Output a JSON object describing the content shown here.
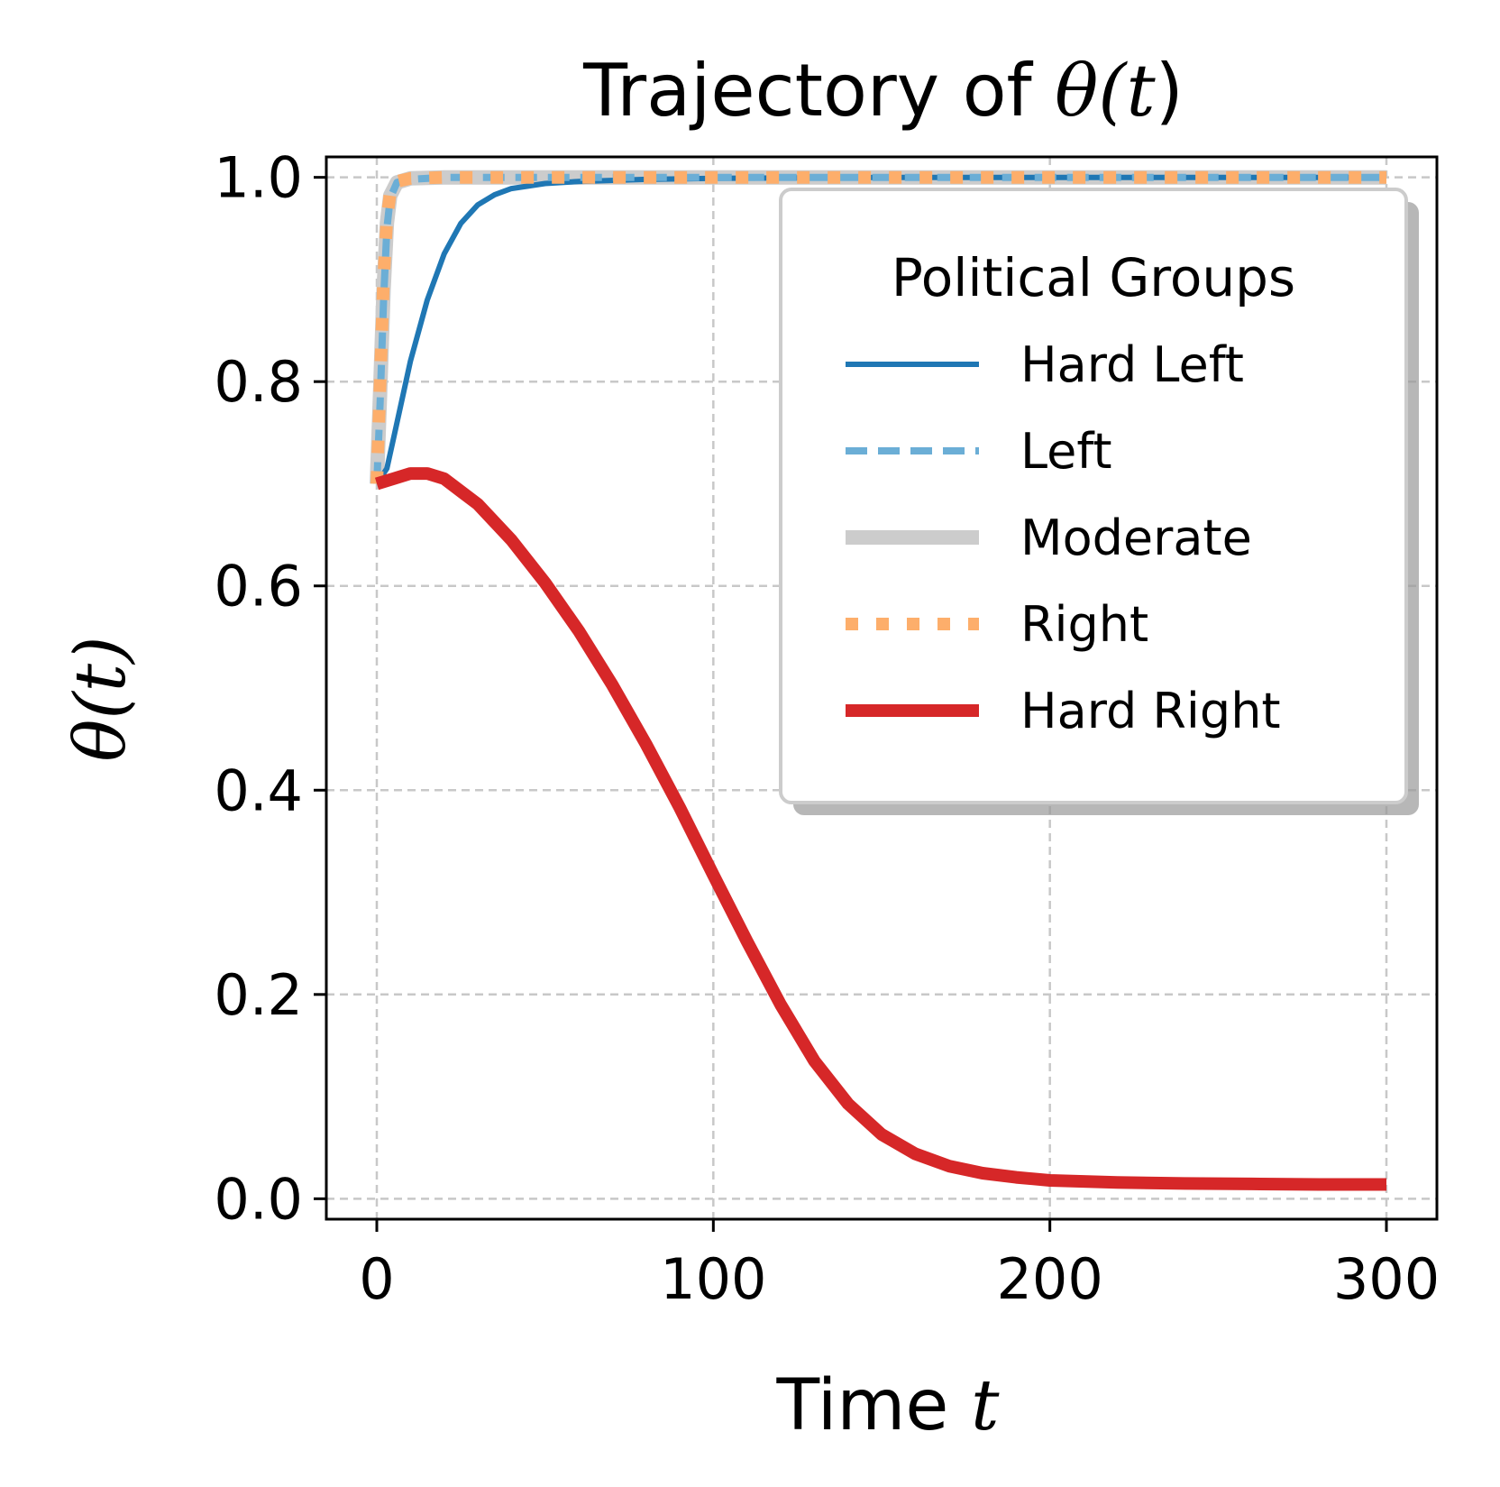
{
  "chart_data": {
    "type": "line",
    "title": "Trajectory of θ(t)",
    "title_parts": [
      "Trajectory of ",
      "θ(",
      "t",
      ")"
    ],
    "xlabel": "Time t",
    "xlabel_parts": [
      "Time ",
      "t"
    ],
    "ylabel": "θ(t)",
    "xlim": [
      -15,
      315
    ],
    "ylim": [
      -0.02,
      1.02
    ],
    "xticks": [
      0,
      100,
      200,
      300
    ],
    "xtick_labels": [
      "0",
      "100",
      "200",
      "300"
    ],
    "yticks": [
      0.0,
      0.2,
      0.4,
      0.6,
      0.8,
      1.0
    ],
    "ytick_labels": [
      "0.0",
      "0.2",
      "0.4",
      "0.6",
      "0.8",
      "1.0"
    ],
    "grid": true,
    "legend": {
      "title": "Political Groups",
      "placement": "upper-right"
    },
    "series": [
      {
        "name": "Hard Left",
        "color": "#1f77b4",
        "style": "solid",
        "x": [
          0,
          3,
          5,
          10,
          15,
          20,
          25,
          30,
          35,
          40,
          50,
          60,
          80,
          100,
          150,
          200,
          250,
          300
        ],
        "y": [
          0.7,
          0.715,
          0.745,
          0.82,
          0.88,
          0.925,
          0.955,
          0.973,
          0.983,
          0.989,
          0.994,
          0.996,
          0.998,
          0.999,
          1.0,
          1.0,
          1.0,
          1.0
        ]
      },
      {
        "name": "Left",
        "color": "#6baed6",
        "style": "dashed",
        "x": [
          0,
          1,
          2,
          3,
          4,
          6,
          10,
          20,
          50,
          100,
          150,
          200,
          250,
          300
        ],
        "y": [
          0.7,
          0.78,
          0.88,
          0.95,
          0.98,
          0.995,
          0.998,
          1.0,
          1.0,
          1.0,
          1.0,
          1.0,
          1.0,
          1.0
        ]
      },
      {
        "name": "Moderate",
        "color": "#cccccc",
        "style": "solid-wide",
        "x": [
          0,
          1,
          2,
          3,
          4,
          6,
          10,
          20,
          50,
          100,
          150,
          200,
          250,
          300
        ],
        "y": [
          0.7,
          0.79,
          0.89,
          0.955,
          0.982,
          0.995,
          0.999,
          1.0,
          1.0,
          1.0,
          1.0,
          1.0,
          1.0,
          1.0
        ]
      },
      {
        "name": "Right",
        "color": "#fdae6b",
        "style": "dotted",
        "x": [
          0,
          1,
          2,
          3,
          4,
          6,
          10,
          20,
          50,
          100,
          150,
          200,
          250,
          300
        ],
        "y": [
          0.7,
          0.8,
          0.9,
          0.96,
          0.985,
          0.996,
          0.999,
          1.0,
          1.0,
          1.0,
          1.0,
          1.0,
          1.0,
          1.0
        ]
      },
      {
        "name": "Hard Right",
        "color": "#d62728",
        "style": "solid-thick",
        "x": [
          0,
          5,
          10,
          15,
          20,
          30,
          40,
          50,
          60,
          70,
          80,
          90,
          100,
          110,
          120,
          130,
          140,
          150,
          160,
          170,
          180,
          190,
          200,
          220,
          240,
          260,
          280,
          300
        ],
        "y": [
          0.7,
          0.705,
          0.71,
          0.71,
          0.705,
          0.68,
          0.645,
          0.603,
          0.556,
          0.503,
          0.445,
          0.383,
          0.317,
          0.252,
          0.19,
          0.135,
          0.093,
          0.063,
          0.044,
          0.032,
          0.025,
          0.021,
          0.018,
          0.016,
          0.015,
          0.0145,
          0.014,
          0.014
        ]
      }
    ]
  }
}
